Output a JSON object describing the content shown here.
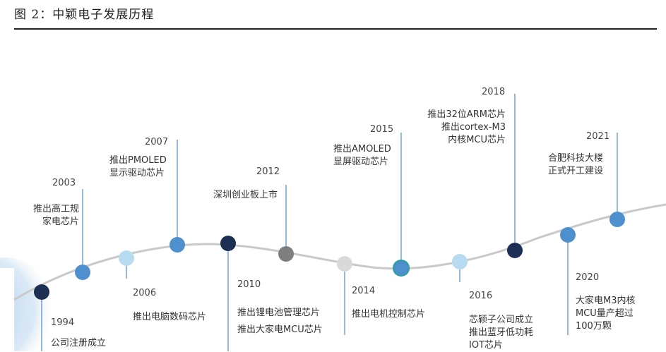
{
  "figure_title": "图 2：中颖电子发展历程",
  "colors": {
    "dark_navy": "#1d2f52",
    "mid_blue": "#4e8fcd",
    "light_blue": "#b7dcf1",
    "gray": "#7f7f7f",
    "light_gray": "#d9d9d9",
    "teal_ring": "#2b9f9a"
  },
  "milestones": [
    {
      "year": "1994",
      "text": "公司注册成立"
    },
    {
      "year": "2003",
      "text": "推出高工规\n家电芯片"
    },
    {
      "year": "2006",
      "text": "推出电脑数码芯片"
    },
    {
      "year": "2007",
      "text": "推出PMOLED\n显示驱动芯片"
    },
    {
      "year": "2010",
      "text": "推出锂电池管理芯片\n推出大家电MCU芯片"
    },
    {
      "year": "2012",
      "text": "深圳创业板上市"
    },
    {
      "year": "2014",
      "text": "推出电机控制芯片"
    },
    {
      "year": "2015",
      "text": "推出AMOLED\n显屏驱动芯片"
    },
    {
      "year": "2016",
      "text": "芯颖子公司成立\n推出蓝牙低功耗\nIOT芯片"
    },
    {
      "year": "2018",
      "text": "推出32位ARM芯片\n推出cortex-M3\n内核MCU芯片"
    },
    {
      "year": "2020",
      "text": "大家电M3内核\nMCU量产超过\n100万颗"
    },
    {
      "year": "2021",
      "text": "合肥科技大楼\n正式开工建设"
    }
  ]
}
